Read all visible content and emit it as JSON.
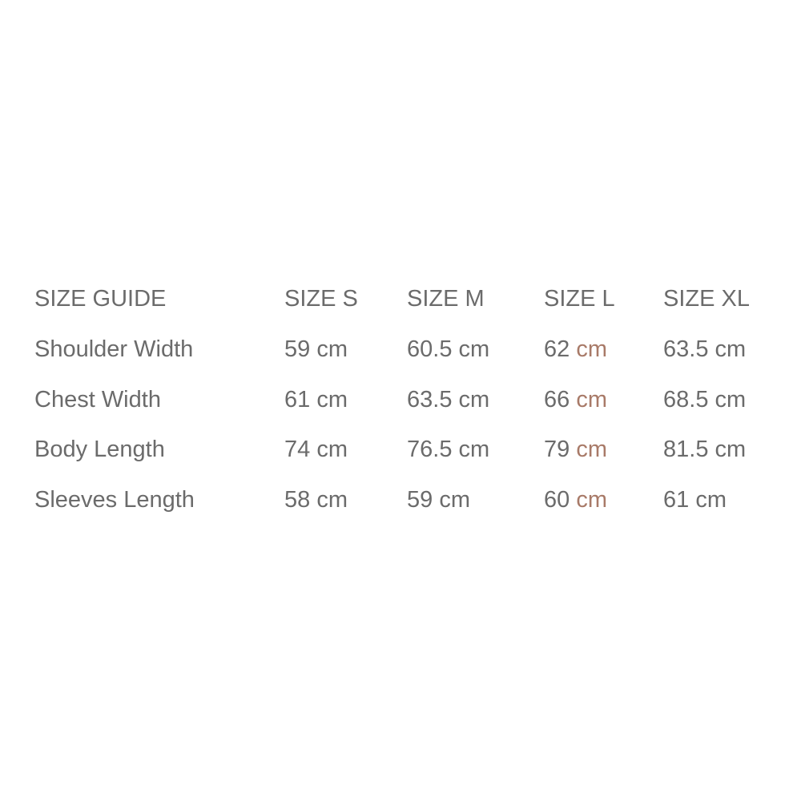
{
  "header": [
    "SIZE GUIDE",
    "SIZE S",
    "SIZE M",
    "SIZE L",
    "SIZE XL"
  ],
  "accent_unit_color": "#a87a68",
  "rows": [
    {
      "label": "Shoulder Width",
      "cells": [
        {
          "v": "59",
          "u": "cm"
        },
        {
          "v": "60.5",
          "u": "cm"
        },
        {
          "v": "62",
          "u": "cm"
        },
        {
          "v": "63.5",
          "u": "cm"
        }
      ]
    },
    {
      "label": "Chest Width",
      "cells": [
        {
          "v": "61",
          "u": "cm"
        },
        {
          "v": "63.5",
          "u": "cm"
        },
        {
          "v": "66",
          "u": "cm"
        },
        {
          "v": "68.5",
          "u": "cm"
        }
      ]
    },
    {
      "label": "Body Length",
      "cells": [
        {
          "v": "74",
          "u": "cm"
        },
        {
          "v": "76.5",
          "u": "cm"
        },
        {
          "v": "79",
          "u": "cm"
        },
        {
          "v": "81.5",
          "u": "cm"
        }
      ]
    },
    {
      "label": "Sleeves Length",
      "cells": [
        {
          "v": "58",
          "u": "cm"
        },
        {
          "v": "59",
          "u": "cm"
        },
        {
          "v": "60",
          "u": "cm"
        },
        {
          "v": "61",
          "u": "cm"
        }
      ]
    }
  ]
}
